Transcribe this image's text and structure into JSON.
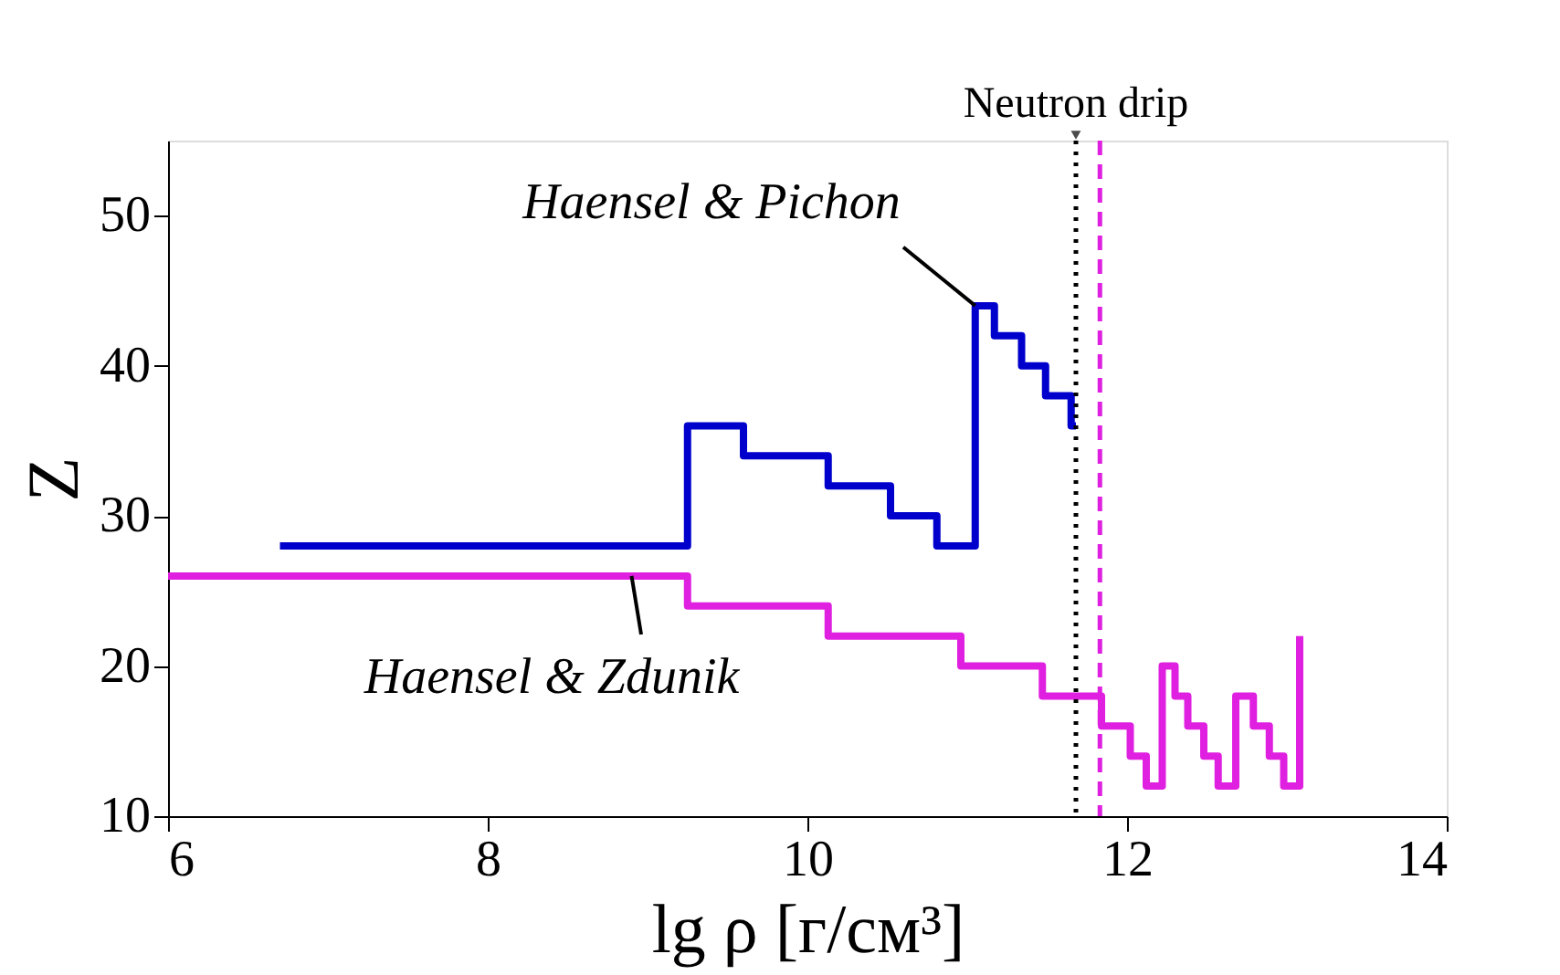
{
  "chart_data": {
    "type": "step",
    "xlabel": "lg ρ [г/см³]",
    "ylabel": "Z",
    "xlim": [
      6,
      14
    ],
    "xticks": [
      6,
      8,
      10,
      12,
      14
    ],
    "ylim": [
      10,
      55
    ],
    "yticks": [
      10,
      20,
      30,
      40,
      50
    ],
    "grid": false,
    "marker": "none",
    "line_style": "solid",
    "series": [
      {
        "color": "#0000cc",
        "x": [
          6.7,
          9.25,
          9.6,
          10.13,
          10.52,
          10.81,
          11.05,
          11.17,
          11.34,
          11.49,
          11.65,
          11.68
        ],
        "values": [
          28,
          36,
          34,
          32,
          30,
          28,
          44,
          42,
          40,
          38,
          36,
          36
        ]
      },
      {
        "color": "#e020e0",
        "x": [
          6,
          9.25,
          10.13,
          10.96,
          11.47,
          11.84,
          12.02,
          12.12,
          12.22,
          12.3,
          12.38,
          12.48,
          12.57,
          12.68,
          12.79,
          12.89,
          12.98,
          13.08
        ],
        "values": [
          26,
          24,
          22,
          20,
          18,
          16,
          14,
          12,
          20,
          18,
          16,
          14,
          12,
          18,
          16,
          14,
          12,
          22
        ]
      }
    ],
    "ref_lines": [
      {
        "axis": "x",
        "value": 11.68,
        "label": "Neutron drip",
        "color": "#000000",
        "line_style": "dotted"
      },
      {
        "axis": "x",
        "value": 11.83,
        "label": null,
        "color": "#e020e0",
        "line_style": "dashed"
      }
    ],
    "annotations": [
      {
        "text": "Haensel & Pichon",
        "x": 11.05,
        "y": 44
      },
      {
        "text": "Haensel & Zdunik",
        "x": 8.9,
        "y": 26
      }
    ]
  }
}
